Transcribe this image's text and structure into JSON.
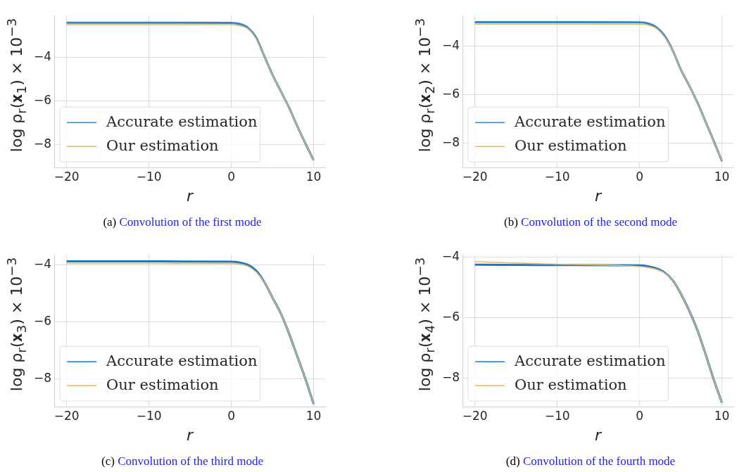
{
  "chart_data": [
    {
      "type": "line",
      "ylabel": "log ρ$_{r}$(𝐱$_{1}$) × 10$^{−3}$",
      "xlabel": "r",
      "annotations": [
        "(a) Convolution of the first mode"
      ],
      "x": [
        -20,
        -10,
        0,
        1,
        2,
        3,
        4,
        5,
        6,
        7,
        8,
        9,
        10
      ],
      "xlim": [
        -21.5,
        11.4
      ],
      "xticks": [
        -20,
        -10,
        0,
        10
      ],
      "ylim": [
        -9.05,
        -2.1
      ],
      "yticks": [
        -8,
        -6,
        -4
      ],
      "grid": true,
      "legend": "lower left",
      "series": [
        {
          "name": "Accurate estimation",
          "color": "#3a87c0",
          "values": [
            -2.42,
            -2.42,
            -2.43,
            -2.48,
            -2.65,
            -3.1,
            -3.95,
            -4.8,
            -5.55,
            -6.3,
            -7.15,
            -7.95,
            -8.72
          ]
        },
        {
          "name": "Our estimation",
          "color": "#d8b878",
          "values": [
            -2.51,
            -2.51,
            -2.52,
            -2.56,
            -2.7,
            -3.15,
            -3.95,
            -4.8,
            -5.55,
            -6.3,
            -7.15,
            -7.95,
            -8.72
          ]
        }
      ]
    },
    {
      "type": "line",
      "ylabel": "log ρ$_{r}$(𝐱$_{2}$) × 10$^{−3}$",
      "xlabel": "r",
      "annotations": [
        "(b) Convolution of the second mode"
      ],
      "x": [
        -20,
        -10,
        0,
        1,
        2,
        3,
        4,
        5,
        6,
        7,
        8,
        9,
        10
      ],
      "xlim": [
        -21.5,
        11.4
      ],
      "xticks": [
        -20,
        -10,
        0,
        10
      ],
      "ylim": [
        -9.0,
        -2.73
      ],
      "yticks": [
        -8,
        -6,
        -4
      ],
      "grid": true,
      "legend": "lower left",
      "series": [
        {
          "name": "Accurate estimation",
          "color": "#3a87c0",
          "values": [
            -3.0,
            -3.0,
            -3.01,
            -3.05,
            -3.2,
            -3.55,
            -4.15,
            -4.95,
            -5.6,
            -6.3,
            -7.1,
            -7.9,
            -8.74
          ]
        },
        {
          "name": "Our estimation",
          "color": "#d8b878",
          "values": [
            -3.08,
            -3.08,
            -3.09,
            -3.12,
            -3.25,
            -3.6,
            -4.15,
            -4.95,
            -5.6,
            -6.3,
            -7.1,
            -7.9,
            -8.74
          ]
        }
      ]
    },
    {
      "type": "line",
      "ylabel": "log ρ$_{r}$(𝐱$_{3}$) × 10$^{−3}$",
      "xlabel": "r",
      "annotations": [
        "(c) Convolution of the third mode"
      ],
      "x": [
        -20,
        -10,
        0,
        1,
        2,
        3,
        4,
        5,
        6,
        7,
        8,
        9,
        10
      ],
      "xlim": [
        -21.5,
        11.4
      ],
      "xticks": [
        -20,
        -10,
        0,
        10
      ],
      "ylim": [
        -8.97,
        -3.65
      ],
      "yticks": [
        -8,
        -6,
        -4
      ],
      "grid": true,
      "legend": "lower left",
      "series": [
        {
          "name": "Accurate estimation",
          "color": "#1f78c0",
          "values": [
            -3.88,
            -3.88,
            -3.89,
            -3.92,
            -4.0,
            -4.2,
            -4.6,
            -5.15,
            -5.7,
            -6.4,
            -7.2,
            -8.0,
            -8.88
          ]
        },
        {
          "name": "Our estimation",
          "color": "#e0ba70",
          "values": [
            -3.95,
            -3.95,
            -3.96,
            -3.98,
            -4.05,
            -4.25,
            -4.6,
            -5.15,
            -5.7,
            -6.4,
            -7.2,
            -8.0,
            -8.88
          ]
        }
      ]
    },
    {
      "type": "line",
      "ylabel": "log ρ$_{r}$(𝐱$_{4}$) × 10$^{−3}$",
      "xlabel": "r",
      "annotations": [
        "(d) Convolution of the fourth mode"
      ],
      "x": [
        -20,
        -10,
        0,
        1,
        2,
        3,
        4,
        5,
        6,
        7,
        8,
        9,
        10
      ],
      "xlim": [
        -21.5,
        11.4
      ],
      "xticks": [
        -20,
        -10,
        0,
        10
      ],
      "ylim": [
        -8.95,
        -3.92
      ],
      "yticks": [
        -8,
        -6,
        -4
      ],
      "grid": true,
      "legend": "lower left",
      "series": [
        {
          "name": "Accurate estimation",
          "color": "#1f78c0",
          "values": [
            -4.25,
            -4.26,
            -4.27,
            -4.3,
            -4.37,
            -4.5,
            -4.75,
            -5.2,
            -5.75,
            -6.4,
            -7.2,
            -8.05,
            -8.82
          ]
        },
        {
          "name": "Our estimation",
          "color": "#e0ba70",
          "values": [
            -4.15,
            -4.23,
            -4.31,
            -4.34,
            -4.4,
            -4.52,
            -4.75,
            -5.2,
            -5.75,
            -6.4,
            -7.2,
            -8.05,
            -8.82
          ]
        }
      ]
    }
  ]
}
